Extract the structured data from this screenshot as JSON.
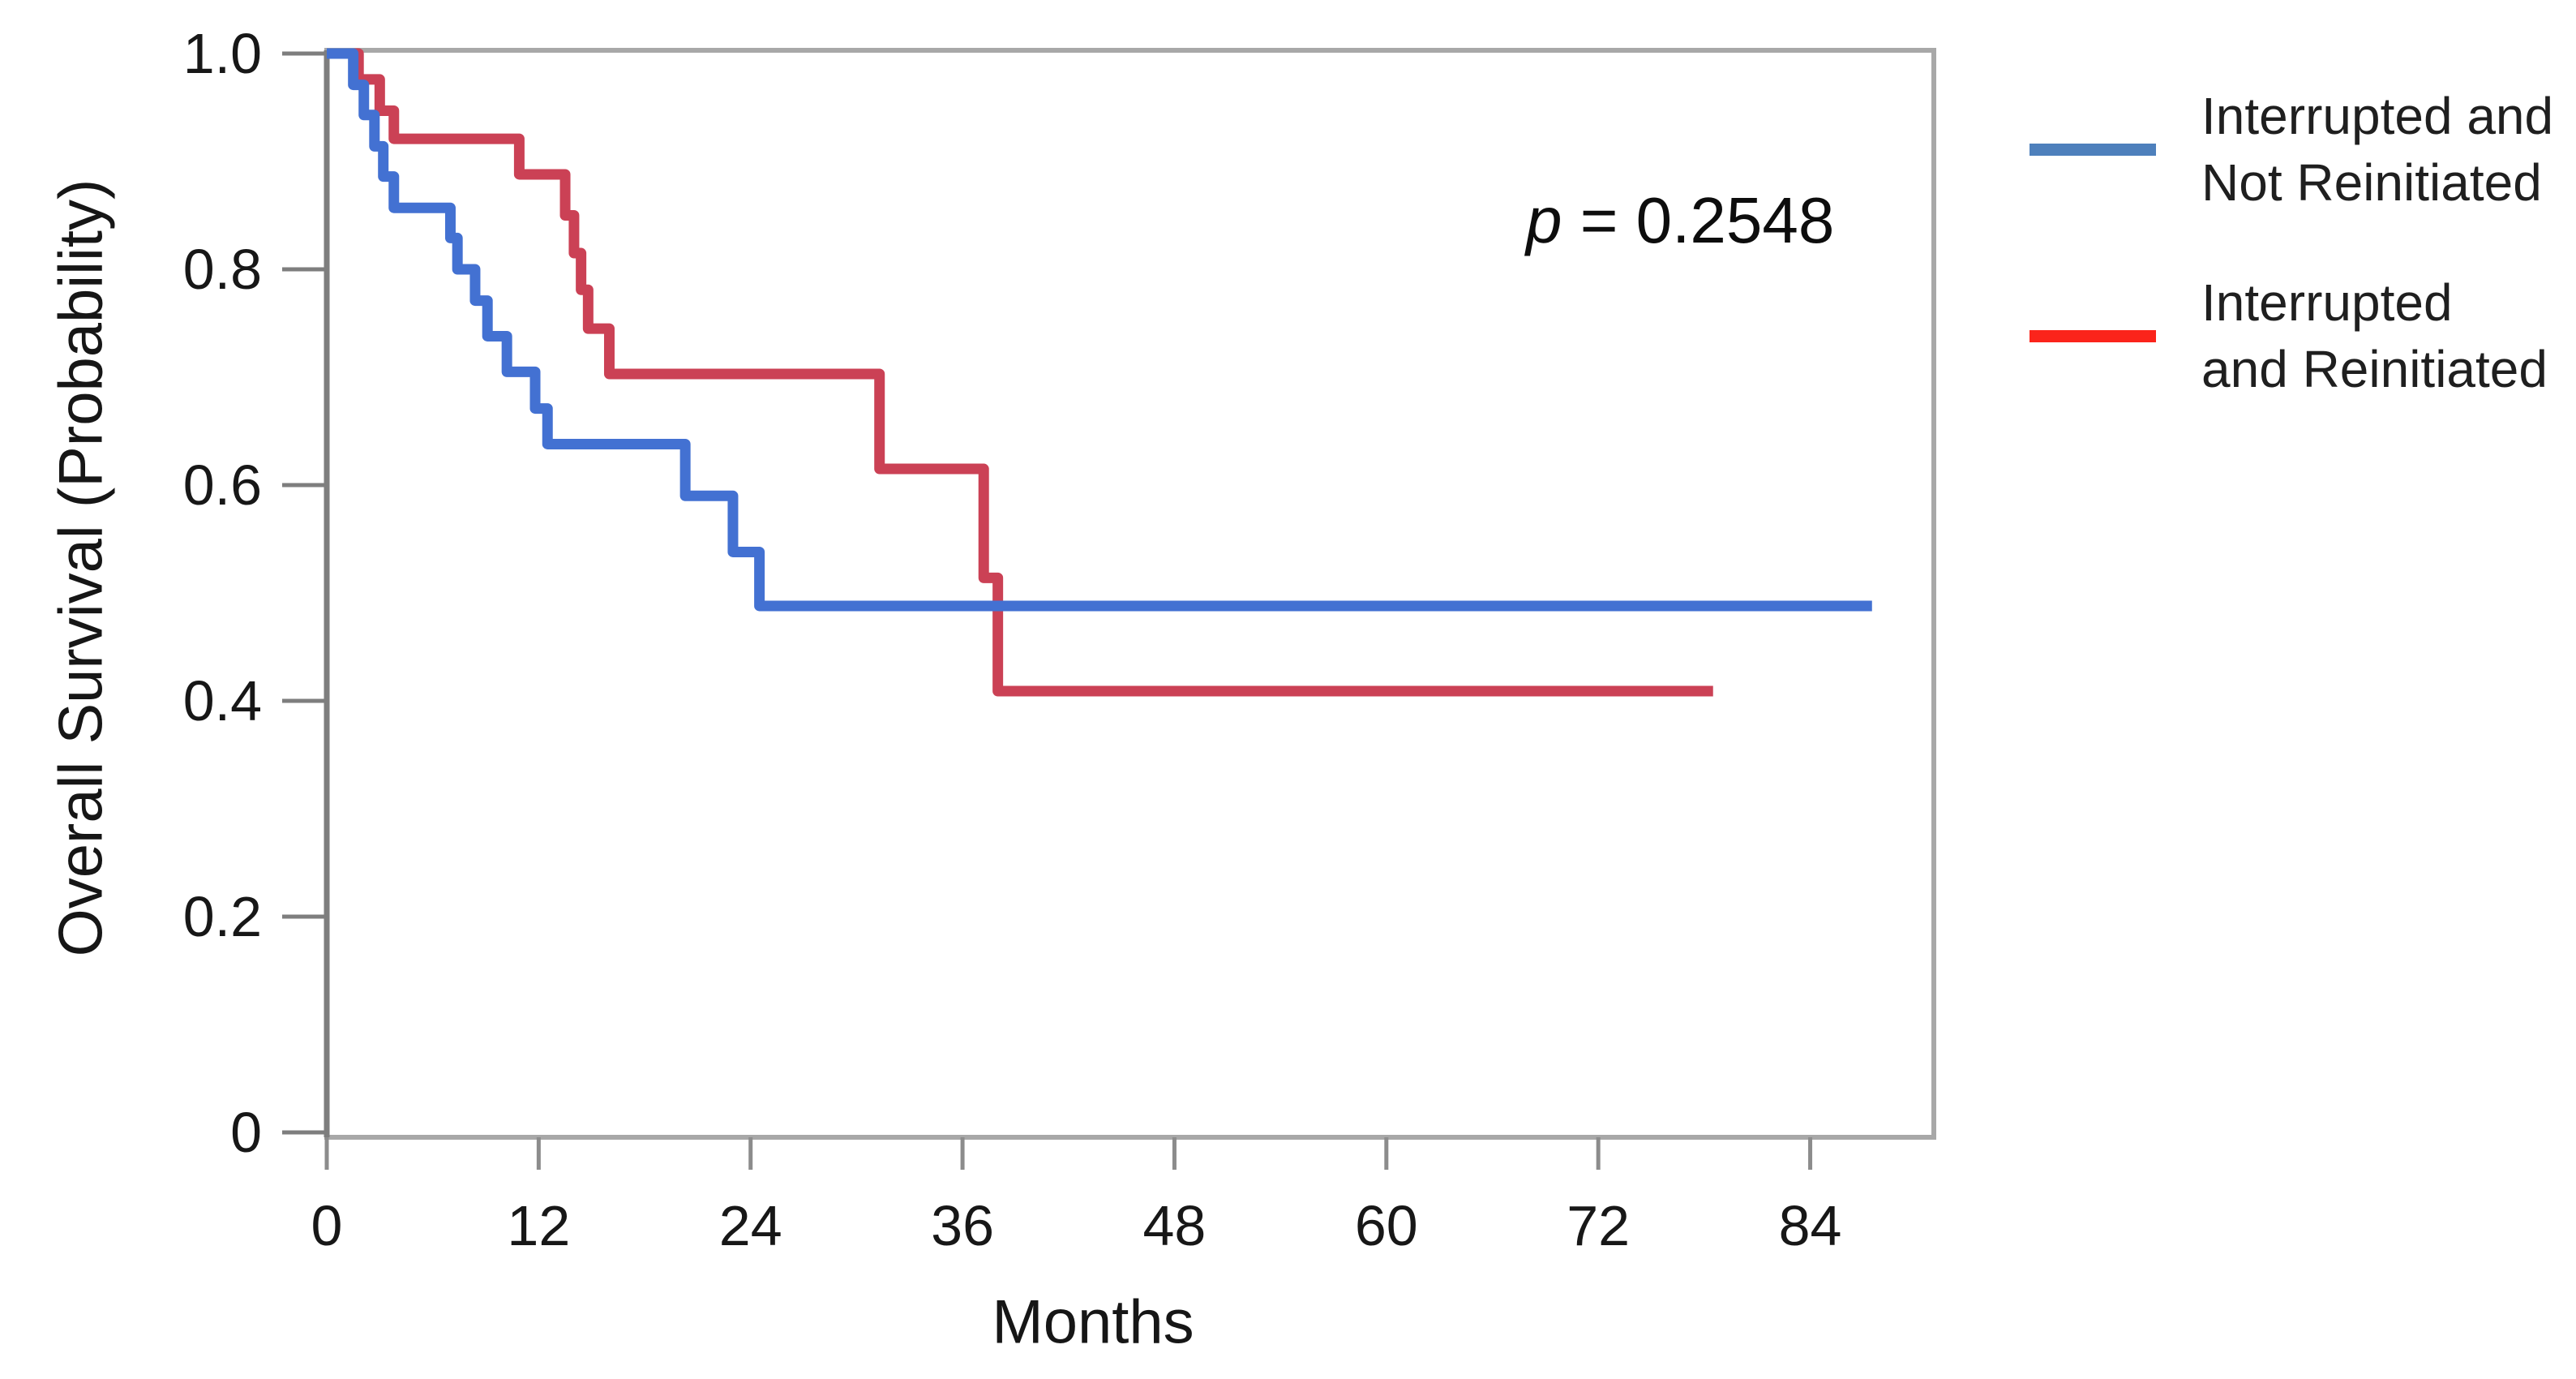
{
  "chart_data": {
    "type": "line",
    "subtype": "kaplan-meier-step",
    "title": "",
    "xlabel": "Months",
    "ylabel": "Overall Survival (Probability)",
    "xlim": [
      0,
      91
    ],
    "ylim": [
      0,
      1.0
    ],
    "grid": false,
    "legend_position": "right-outside",
    "xticks": [
      0,
      12,
      24,
      36,
      48,
      60,
      72,
      84
    ],
    "yticks": [
      {
        "label": "1.0",
        "value": 1.0
      },
      {
        "label": "0.8",
        "value": 0.8
      },
      {
        "label": "0.6",
        "value": 0.6
      },
      {
        "label": "0.4",
        "value": 0.4
      },
      {
        "label": "0.2",
        "value": 0.2
      },
      {
        "label": "0",
        "value": 0.0
      }
    ],
    "annotation": {
      "pvalue_symbol": "p",
      "pvalue_rest": " = 0.2548"
    },
    "series": [
      {
        "name": "Interrupted and Not Reinitiated",
        "label_lines": [
          "Interrupted and",
          "Not Reinitiated"
        ],
        "color": "#4371D2",
        "legend_color": "#4E80BC",
        "start": {
          "t": 0,
          "p": 1.0
        },
        "steps": [
          [
            1.5,
            0.971
          ],
          [
            2.1,
            0.943
          ],
          [
            2.7,
            0.914
          ],
          [
            3.2,
            0.886
          ],
          [
            3.8,
            0.857
          ],
          [
            7.0,
            0.829
          ],
          [
            7.4,
            0.8
          ],
          [
            8.4,
            0.771
          ],
          [
            9.1,
            0.738
          ],
          [
            10.2,
            0.705
          ],
          [
            11.8,
            0.671
          ],
          [
            12.5,
            0.638
          ],
          [
            20.3,
            0.59
          ],
          [
            23.0,
            0.538
          ],
          [
            24.5,
            0.488
          ]
        ],
        "end_t": 87.5
      },
      {
        "name": "Interrupted and Reinitiated",
        "label_lines": [
          "Interrupted",
          "and Reinitiated"
        ],
        "color": "#CB4155",
        "legend_color": "#FB241B",
        "start": {
          "t": 0,
          "p": 1.0
        },
        "steps": [
          [
            1.8,
            0.976
          ],
          [
            3.0,
            0.947
          ],
          [
            3.8,
            0.921
          ],
          [
            10.9,
            0.888
          ],
          [
            13.5,
            0.85
          ],
          [
            14.0,
            0.815
          ],
          [
            14.4,
            0.781
          ],
          [
            14.8,
            0.745
          ],
          [
            16.0,
            0.703
          ],
          [
            31.3,
            0.615
          ],
          [
            37.2,
            0.514
          ],
          [
            38.0,
            0.409
          ]
        ],
        "end_t": 78.5
      }
    ],
    "colors": {
      "plot_border": "#A8A8A8",
      "axis_line": "#7E7E7E",
      "tick_mark": "#8C8C8C",
      "tick_label": "#171717",
      "background": "#FFFFFF"
    }
  }
}
